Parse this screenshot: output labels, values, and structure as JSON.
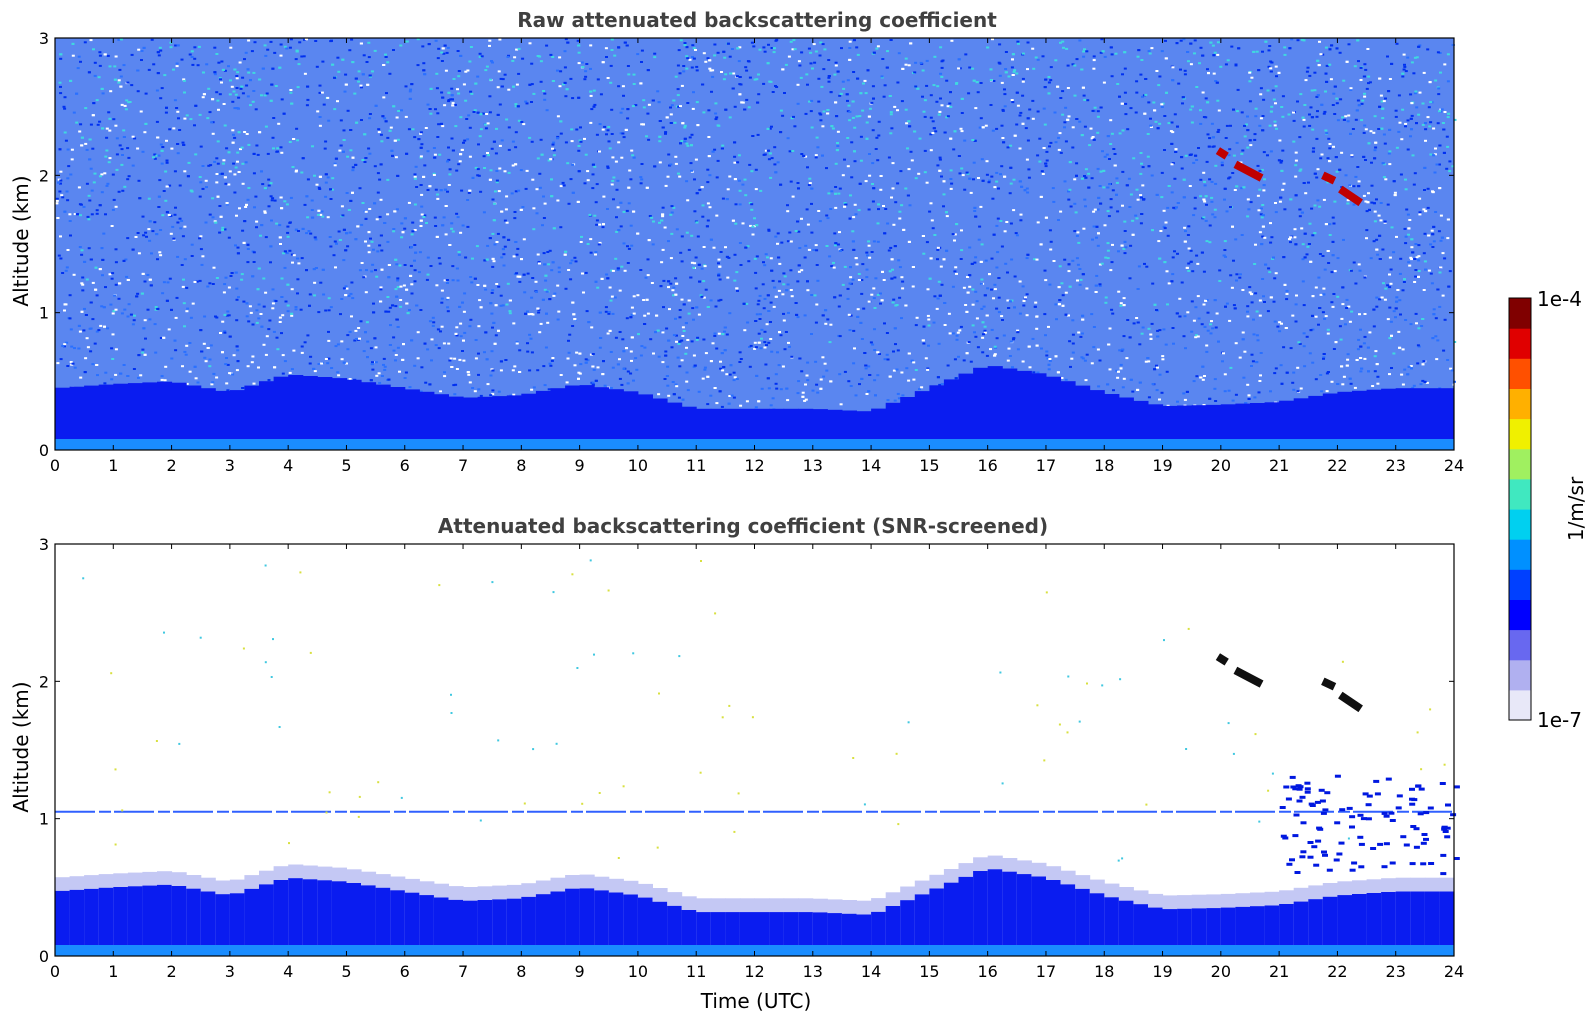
{
  "chart_data": [
    {
      "type": "heatmap",
      "title": "Raw attenuated backscattering coefficient",
      "xlabel": "",
      "ylabel": "Altitude (km)",
      "xlim": [
        0,
        24
      ],
      "ylim": [
        0,
        3
      ],
      "xticks": [
        "0",
        "1",
        "2",
        "3",
        "4",
        "5",
        "6",
        "7",
        "8",
        "9",
        "10",
        "11",
        "12",
        "13",
        "14",
        "15",
        "16",
        "17",
        "18",
        "19",
        "20",
        "21",
        "22",
        "23",
        "24"
      ],
      "yticks": [
        "0",
        "1",
        "2",
        "3"
      ],
      "color_scale": "log",
      "features": {
        "boundary_layer_top_km": [
          [
            0,
            0.45
          ],
          [
            1,
            0.48
          ],
          [
            2,
            0.5
          ],
          [
            3,
            0.42
          ],
          [
            4,
            0.55
          ],
          [
            5,
            0.52
          ],
          [
            6,
            0.45
          ],
          [
            7,
            0.38
          ],
          [
            8,
            0.4
          ],
          [
            9,
            0.48
          ],
          [
            10,
            0.42
          ],
          [
            11,
            0.3
          ],
          [
            12,
            0.3
          ],
          [
            13,
            0.3
          ],
          [
            14,
            0.28
          ],
          [
            15,
            0.45
          ],
          [
            16,
            0.62
          ],
          [
            17,
            0.55
          ],
          [
            18,
            0.42
          ],
          [
            19,
            0.32
          ],
          [
            20,
            0.33
          ],
          [
            21,
            0.35
          ],
          [
            22,
            0.42
          ],
          [
            23,
            0.45
          ],
          [
            24,
            0.45
          ]
        ],
        "cloud_segments": [
          {
            "x": [
              19.95,
              20.1
            ],
            "y": [
              2.18,
              2.14
            ]
          },
          {
            "x": [
              20.25,
              20.7
            ],
            "y": [
              2.08,
              1.98
            ]
          },
          {
            "x": [
              21.75,
              21.95
            ],
            "y": [
              2.0,
              1.96
            ]
          },
          {
            "x": [
              22.05,
              22.4
            ],
            "y": [
              1.9,
              1.8
            ]
          }
        ]
      }
    },
    {
      "type": "heatmap",
      "title": "Attenuated backscattering coefficient (SNR-screened)",
      "xlabel": "Time (UTC)",
      "ylabel": "Altitude (km)",
      "xlim": [
        0,
        24
      ],
      "ylim": [
        0,
        3
      ],
      "xticks": [
        "0",
        "1",
        "2",
        "3",
        "4",
        "5",
        "6",
        "7",
        "8",
        "9",
        "10",
        "11",
        "12",
        "13",
        "14",
        "15",
        "16",
        "17",
        "18",
        "19",
        "20",
        "21",
        "22",
        "23",
        "24"
      ],
      "yticks": [
        "0",
        "1",
        "2",
        "3"
      ],
      "color_scale": "log",
      "features": {
        "artifact_line_km": 1.05,
        "cloud_segments": [
          {
            "x": [
              19.95,
              20.1
            ],
            "y": [
              2.18,
              2.14
            ]
          },
          {
            "x": [
              20.25,
              20.7
            ],
            "y": [
              2.08,
              1.98
            ]
          },
          {
            "x": [
              21.75,
              21.95
            ],
            "y": [
              2.0,
              1.96
            ]
          },
          {
            "x": [
              22.05,
              22.4
            ],
            "y": [
              1.9,
              1.8
            ]
          }
        ]
      }
    }
  ],
  "colorbar": {
    "label": "1/m/sr",
    "max_label": "1e-4",
    "min_label": "1e-7",
    "range": [
      1e-07,
      0.0001
    ],
    "colors": [
      "#e8e8f8",
      "#b0b0f0",
      "#6868f0",
      "#0000ff",
      "#0040ff",
      "#0090ff",
      "#00d0f0",
      "#40e8c0",
      "#a0f060",
      "#f0f000",
      "#ffb000",
      "#ff5000",
      "#e00000",
      "#800000"
    ]
  }
}
